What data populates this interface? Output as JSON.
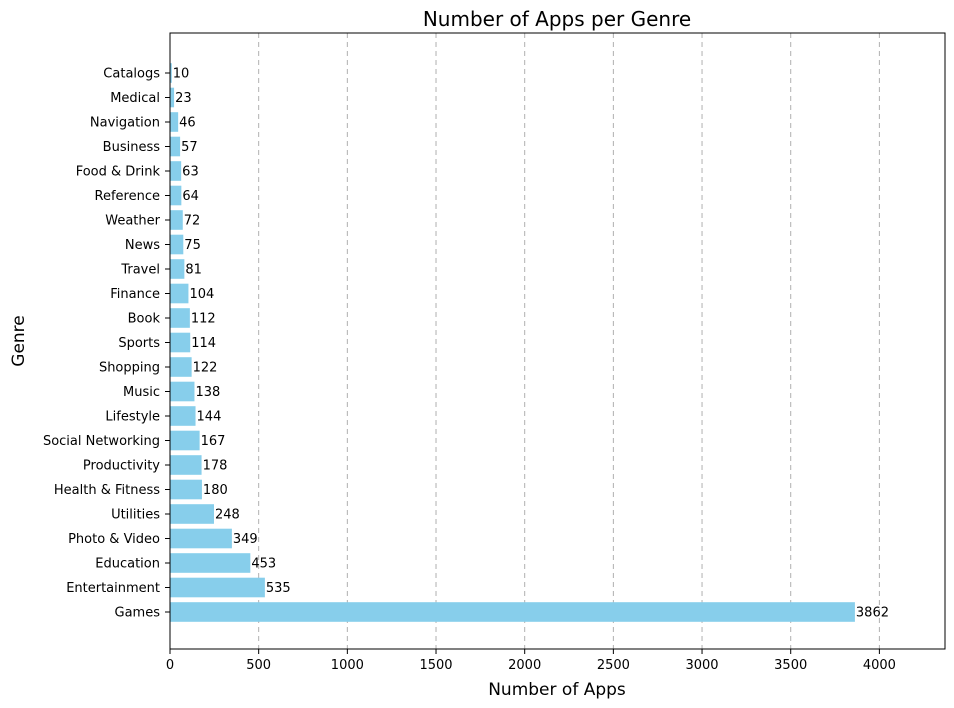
{
  "chart_data": {
    "type": "bar",
    "orientation": "horizontal",
    "title": "Number of Apps per Genre",
    "xlabel": "Number of Apps",
    "ylabel": "Genre",
    "xlim": [
      0,
      4370
    ],
    "xticks": [
      0,
      500,
      1000,
      1500,
      2000,
      2500,
      3000,
      3500,
      4000
    ],
    "grid": "x-dashed",
    "bar_color": "#87ceeb",
    "categories": [
      "Games",
      "Entertainment",
      "Education",
      "Photo & Video",
      "Utilities",
      "Health & Fitness",
      "Productivity",
      "Social Networking",
      "Lifestyle",
      "Music",
      "Shopping",
      "Sports",
      "Book",
      "Finance",
      "Travel",
      "News",
      "Weather",
      "Reference",
      "Food & Drink",
      "Business",
      "Navigation",
      "Medical",
      "Catalogs"
    ],
    "values": [
      3862,
      535,
      453,
      349,
      248,
      180,
      178,
      167,
      144,
      138,
      122,
      114,
      112,
      104,
      81,
      75,
      72,
      64,
      63,
      57,
      46,
      23,
      10
    ]
  }
}
